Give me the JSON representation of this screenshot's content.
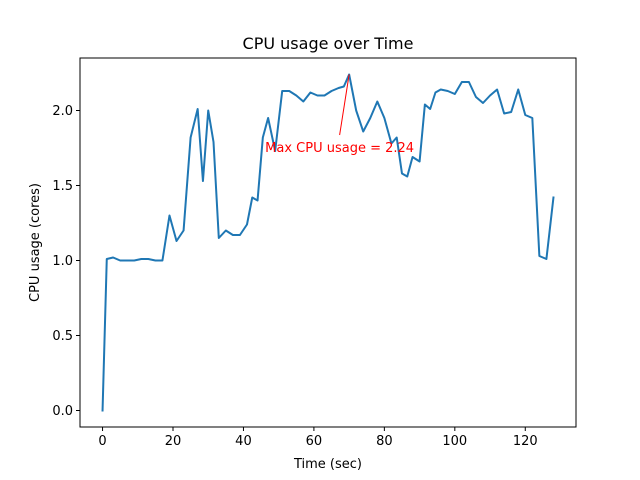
{
  "chart_data": {
    "type": "line",
    "title": "CPU usage over Time",
    "xlabel": "Time (sec)",
    "ylabel": "CPU usage (cores)",
    "xlim": [
      -6.4,
      134.4
    ],
    "ylim": [
      -0.11,
      2.35
    ],
    "xticks": [
      0,
      20,
      40,
      60,
      80,
      100,
      120
    ],
    "yticks": [
      0.0,
      0.5,
      1.0,
      1.5,
      2.0
    ],
    "ytick_labels": [
      "0.0",
      "0.5",
      "1.0",
      "1.5",
      "2.0"
    ],
    "grid": false,
    "series": [
      {
        "color": "#1f77b4",
        "x": [
          0,
          1.2,
          3,
          5,
          7,
          9,
          11,
          13,
          15,
          17,
          19,
          21,
          23,
          25,
          27,
          28.5,
          30,
          31.5,
          33,
          35,
          37,
          39,
          41,
          42.5,
          44,
          45.5,
          47,
          49,
          51,
          53,
          55,
          57,
          59,
          61,
          63,
          65,
          67,
          68.5,
          70,
          72,
          74,
          76,
          78,
          80,
          82,
          83.5,
          85,
          86.5,
          88,
          90,
          91.5,
          93,
          94.5,
          96,
          98,
          100,
          102,
          104,
          106,
          108,
          110,
          112,
          114,
          116,
          118,
          120,
          122,
          124,
          126,
          128
        ],
        "y": [
          0.0,
          1.01,
          1.02,
          1.0,
          1.0,
          1.0,
          1.01,
          1.01,
          1.0,
          1.0,
          1.3,
          1.13,
          1.2,
          1.82,
          2.01,
          1.53,
          2.0,
          1.79,
          1.15,
          1.2,
          1.17,
          1.17,
          1.24,
          1.42,
          1.4,
          1.82,
          1.95,
          1.73,
          2.13,
          2.13,
          2.1,
          2.06,
          2.12,
          2.1,
          2.1,
          2.13,
          2.15,
          2.16,
          2.24,
          2.0,
          1.86,
          1.95,
          2.06,
          1.95,
          1.78,
          1.82,
          1.58,
          1.56,
          1.69,
          1.66,
          2.04,
          2.01,
          2.12,
          2.14,
          2.13,
          2.11,
          2.19,
          2.19,
          2.09,
          2.05,
          2.1,
          2.14,
          1.98,
          1.99,
          2.14,
          1.97,
          1.95,
          1.03,
          1.01,
          1.42
        ]
      }
    ],
    "annotation": {
      "text": "Max CPU usage = 2.24",
      "color": "#ff0000",
      "point": [
        70,
        2.24
      ],
      "text_anchor_point": [
        67.3,
        1.75
      ]
    }
  }
}
